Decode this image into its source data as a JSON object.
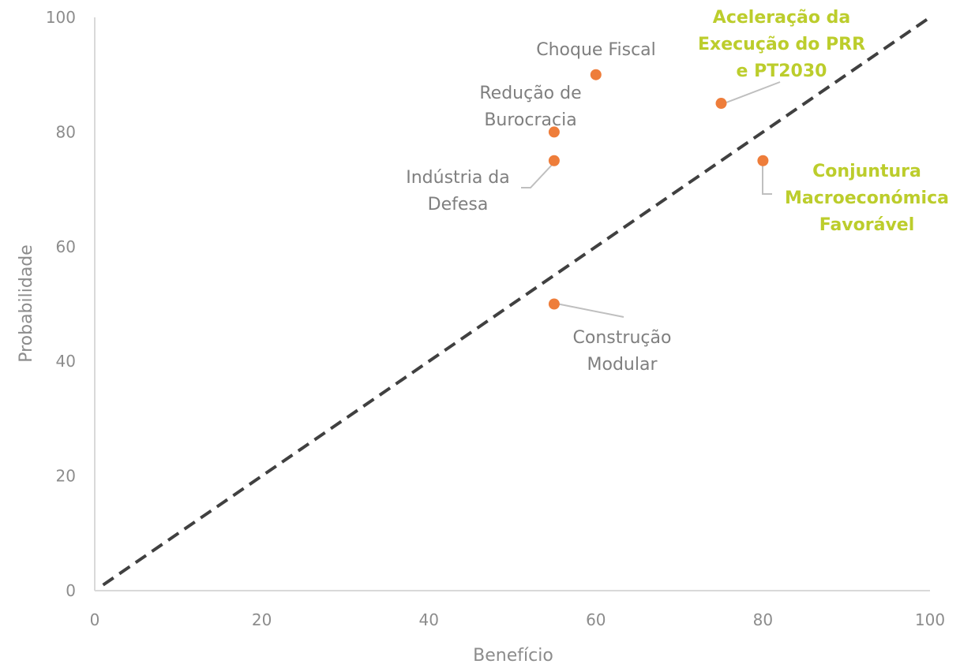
{
  "chart_data": {
    "type": "scatter",
    "title": "",
    "xlabel": "Benefício",
    "ylabel": "Probabilidade",
    "xlim": [
      0,
      100
    ],
    "ylim": [
      0,
      100
    ],
    "x_ticks": [
      0,
      20,
      40,
      60,
      80,
      100
    ],
    "y_ticks": [
      0,
      20,
      40,
      60,
      80,
      100
    ],
    "grid": false,
    "reference_line": {
      "style": "dashed",
      "from": [
        1,
        1
      ],
      "to": [
        100,
        100
      ]
    },
    "points": [
      {
        "name": "choque-fiscal",
        "label": [
          "Choque Fiscal"
        ],
        "x": 60,
        "y": 90,
        "highlight": false
      },
      {
        "name": "aceleracao-prr",
        "label": [
          "Aceleração da",
          "Execução do PRR",
          "e PT2030"
        ],
        "x": 75,
        "y": 85,
        "highlight": true
      },
      {
        "name": "reducao-burocracia",
        "label": [
          "Redução de",
          "Burocracia"
        ],
        "x": 55,
        "y": 80,
        "highlight": false
      },
      {
        "name": "industria-defesa",
        "label": [
          "Indústria da",
          "Defesa"
        ],
        "x": 55,
        "y": 75,
        "highlight": false
      },
      {
        "name": "conjuntura-macro",
        "label": [
          "Conjuntura",
          "Macroeconómica",
          "Favorável"
        ],
        "x": 80,
        "y": 75,
        "highlight": true
      },
      {
        "name": "construcao-modular",
        "label": [
          "Construção",
          "Modular"
        ],
        "x": 55,
        "y": 50,
        "highlight": false
      }
    ]
  },
  "colors": {
    "point": "#ee7d3a",
    "label": "#7f7f7f",
    "highlight_label": "#bccd2c",
    "axis": "#d9d9d9",
    "dashed_line": "#404040",
    "leader": "#bfbfbf"
  }
}
